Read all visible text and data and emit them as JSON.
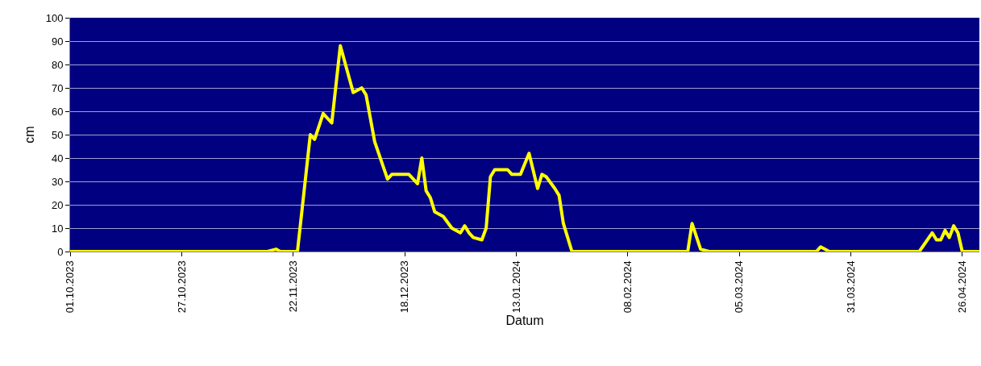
{
  "chart_data": {
    "type": "line",
    "xlabel": "Datum",
    "ylabel": "cm",
    "x": [
      "2023-10-01",
      "2023-11-16",
      "2023-11-18",
      "2023-11-19",
      "2023-11-23",
      "2023-11-26",
      "2023-11-27",
      "2023-11-29",
      "2023-12-01",
      "2023-12-03",
      "2023-12-06",
      "2023-12-08",
      "2023-12-09",
      "2023-12-11",
      "2023-12-14",
      "2023-12-15",
      "2023-12-19",
      "2023-12-21",
      "2023-12-22",
      "2023-12-23",
      "2023-12-24",
      "2023-12-25",
      "2023-12-27",
      "2023-12-29",
      "2023-12-31",
      "2024-01-01",
      "2024-01-02",
      "2024-01-03",
      "2024-01-05",
      "2024-01-06",
      "2024-01-07",
      "2024-01-08",
      "2024-01-11",
      "2024-01-12",
      "2024-01-14",
      "2024-01-16",
      "2024-01-18",
      "2024-01-19",
      "2024-01-20",
      "2024-01-22",
      "2024-01-23",
      "2024-01-24",
      "2024-01-26",
      "2024-02-22",
      "2024-02-23",
      "2024-02-25",
      "2024-02-27",
      "2024-03-23",
      "2024-03-24",
      "2024-03-26",
      "2024-04-16",
      "2024-04-19",
      "2024-04-20",
      "2024-04-21",
      "2024-04-22",
      "2024-04-23",
      "2024-04-24",
      "2024-04-25",
      "2024-04-26",
      "2024-04-30"
    ],
    "series": [
      {
        "color": "#ffff00",
        "values": [
          0,
          0,
          1,
          0,
          0,
          50,
          48,
          59,
          55,
          88,
          68,
          70,
          67,
          47,
          31,
          33,
          33,
          29,
          40,
          26,
          23,
          17,
          15,
          10,
          8,
          11,
          8,
          6,
          5,
          10,
          32,
          35,
          35,
          33,
          33,
          42,
          27,
          33,
          32,
          27,
          24,
          12,
          0,
          0,
          12,
          1,
          0,
          0,
          2,
          0,
          0,
          8,
          5,
          5,
          9,
          6,
          11,
          8,
          0,
          0
        ]
      }
    ],
    "xlim": [
      "2023-10-01",
      "2024-04-30"
    ],
    "xticks": [
      {
        "value": "2023-10-01",
        "label": "01.10.2023"
      },
      {
        "value": "2023-10-27",
        "label": "27.10.2023"
      },
      {
        "value": "2023-11-22",
        "label": "22.11.2023"
      },
      {
        "value": "2023-12-18",
        "label": "18.12.2023"
      },
      {
        "value": "2024-01-13",
        "label": "13.01.2024"
      },
      {
        "value": "2024-02-08",
        "label": "08.02.2024"
      },
      {
        "value": "2024-03-05",
        "label": "05.03.2024"
      },
      {
        "value": "2024-03-31",
        "label": "31.03.2024"
      },
      {
        "value": "2024-04-26",
        "label": "26.04.2024"
      }
    ],
    "ylim": [
      0,
      100
    ],
    "yticks": [
      0,
      10,
      20,
      30,
      40,
      50,
      60,
      70,
      80,
      90,
      100
    ],
    "grid": "y",
    "marker": "none",
    "line_style": "solid"
  }
}
